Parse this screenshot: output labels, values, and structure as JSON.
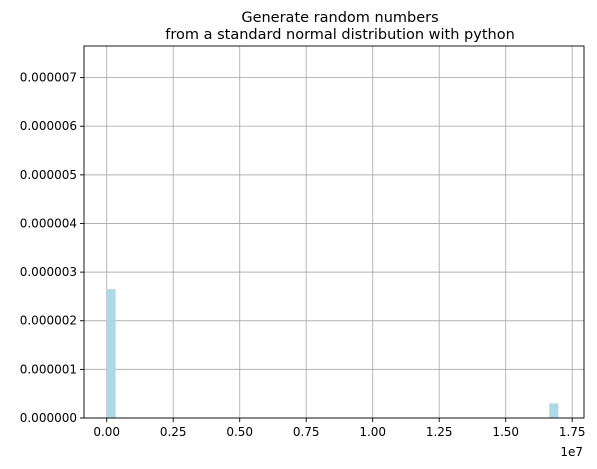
{
  "chart_data": {
    "type": "bar",
    "title_lines": [
      "Generate random numbers",
      "from a standard normal distribution with python"
    ],
    "xlabel": "",
    "ylabel": "",
    "grid": true,
    "bar_color": "#add8e6",
    "x_offset_label": "1e7",
    "xlim": [
      -0.0854,
      1.7944
    ],
    "ylim": [
      0,
      7.65e-06
    ],
    "x_ticks": [
      0,
      0.25,
      0.5,
      0.75,
      1.0,
      1.25,
      1.5,
      1.75
    ],
    "x_tick_labels": [
      "0.00",
      "0.25",
      "0.50",
      "0.75",
      "1.00",
      "1.25",
      "1.50",
      "1.75"
    ],
    "y_ticks": [
      0,
      1e-06,
      2e-06,
      3e-06,
      4e-06,
      5e-06,
      6e-06,
      7e-06
    ],
    "y_tick_labels": [
      "0.000000",
      "0.000001",
      "0.000002",
      "0.000003",
      "0.000004",
      "0.000005",
      "0.000006",
      "0.000007"
    ],
    "bars": [
      {
        "x0": 0.0,
        "x1": 0.0335,
        "value": 2.65e-06
      },
      {
        "x0": 1.664,
        "x1": 1.698,
        "value": 3e-07
      }
    ]
  }
}
